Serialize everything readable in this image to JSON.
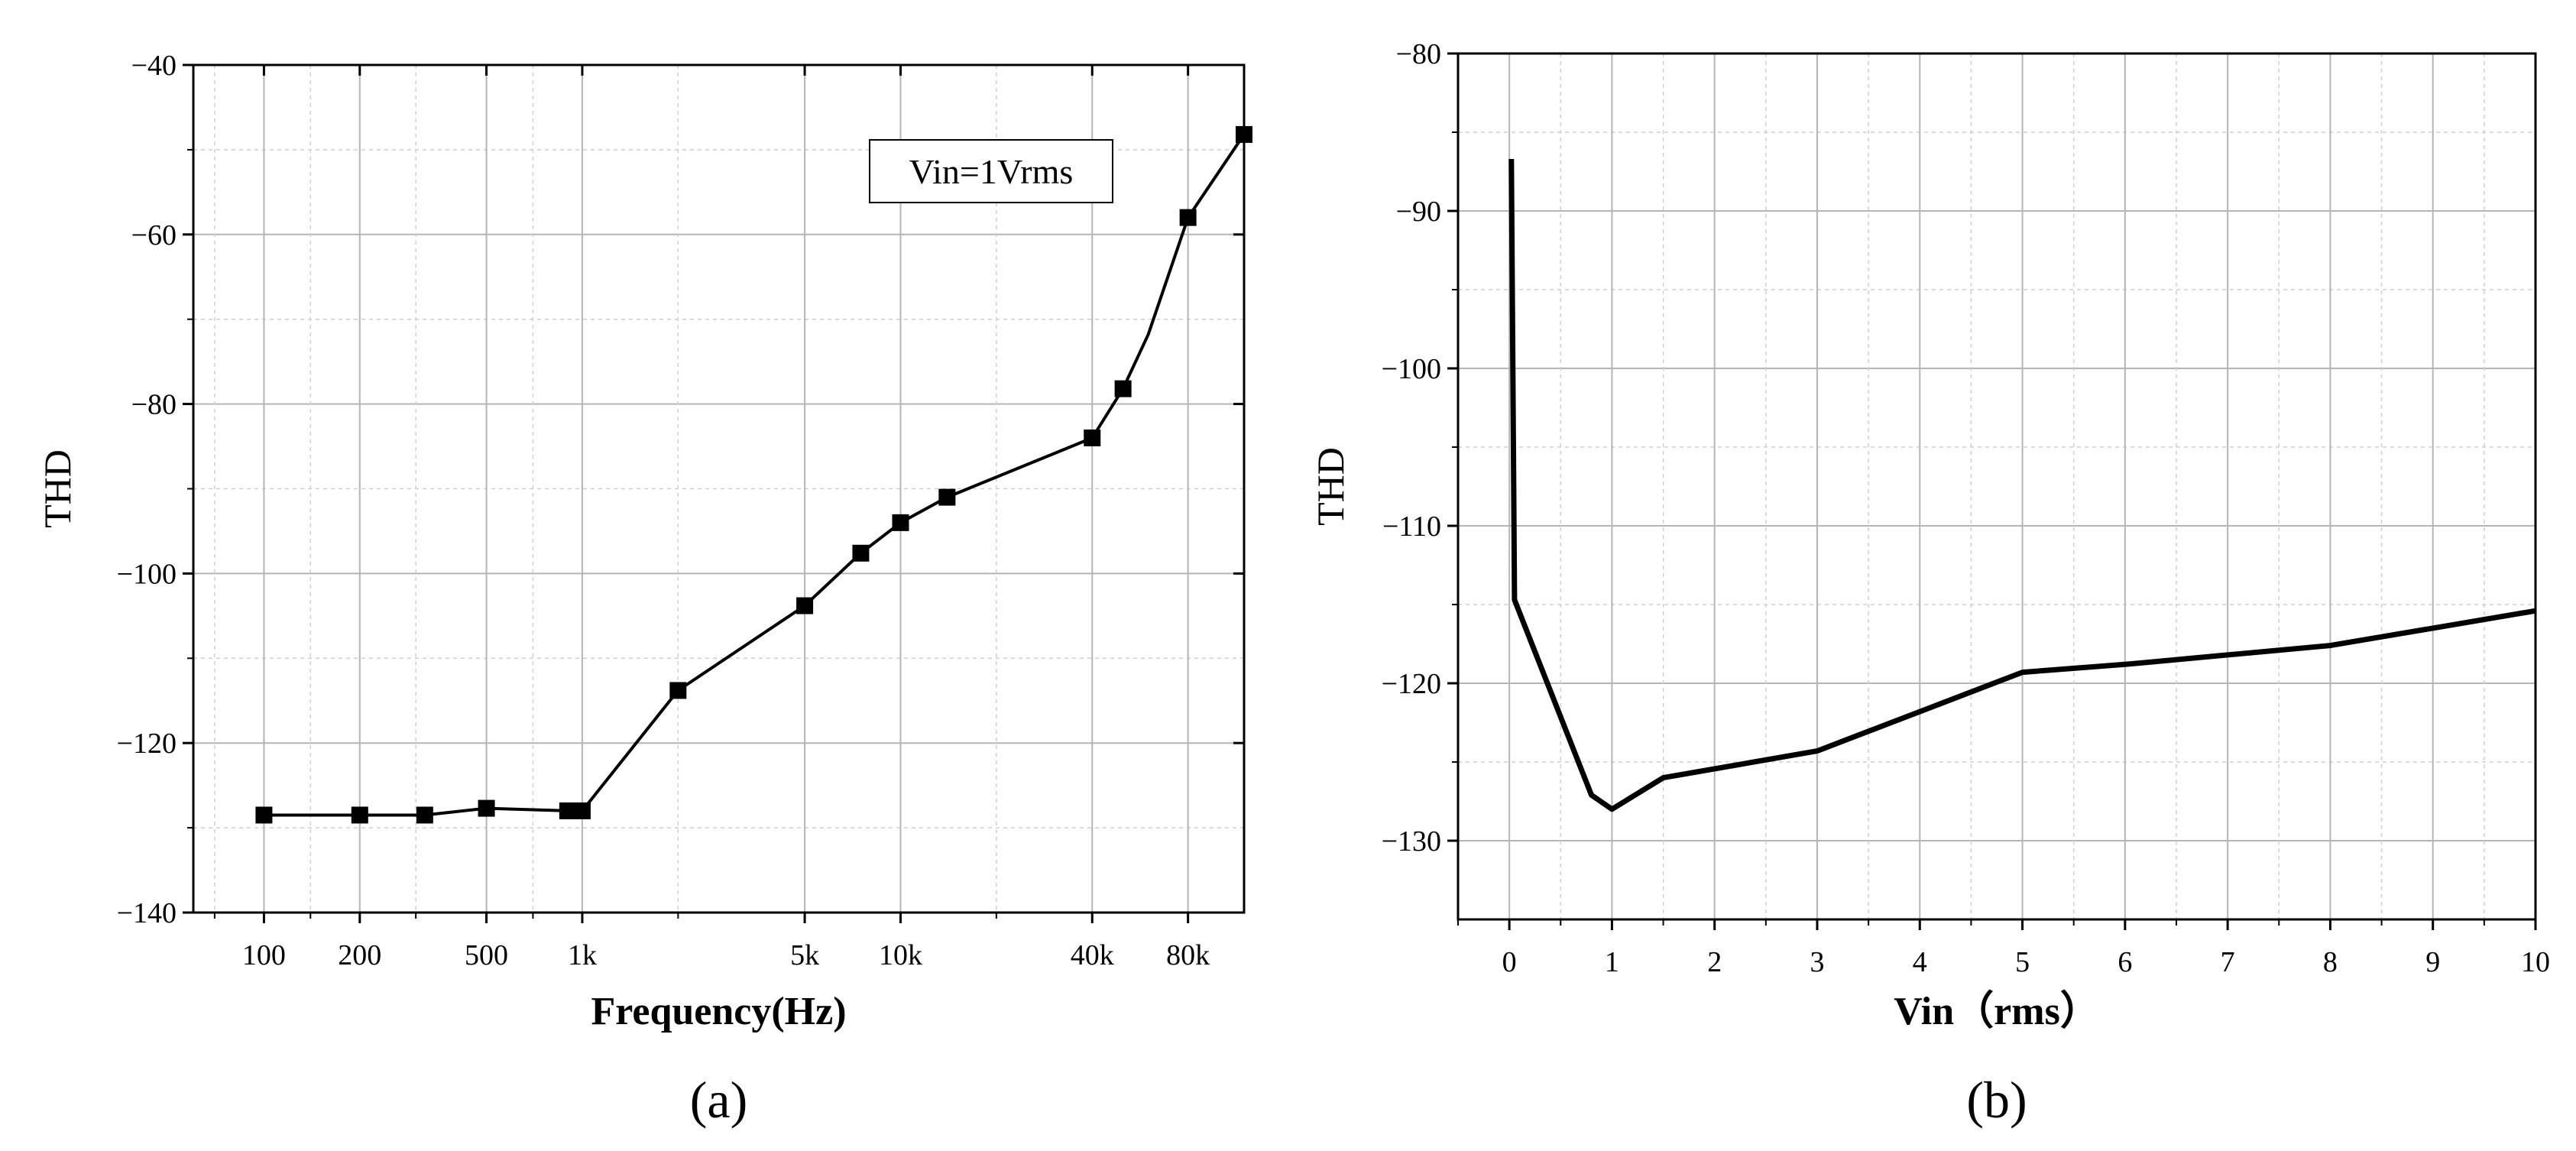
{
  "chart_data": [
    {
      "panel_label": "(a)",
      "type": "line",
      "xscale": "log",
      "xlabel": "Frequency(Hz)",
      "ylabel": "THD",
      "ylim": [
        -140,
        -40
      ],
      "yticks": [
        -140,
        -120,
        -100,
        -80,
        -60,
        -40
      ],
      "yticks_minor": [
        -130,
        -110,
        -90,
        -70,
        -50
      ],
      "xlim": [
        60,
        120000
      ],
      "xticks": [
        {
          "value": 100,
          "label": "100"
        },
        {
          "value": 200,
          "label": "200"
        },
        {
          "value": 500,
          "label": "500"
        },
        {
          "value": 1000,
          "label": "1k"
        },
        {
          "value": 5000,
          "label": "5k"
        },
        {
          "value": 10000,
          "label": "10k"
        },
        {
          "value": 40000,
          "label": "40k"
        },
        {
          "value": 80000,
          "label": "80k"
        }
      ],
      "xgrid_minor": [
        70,
        140,
        300,
        700,
        2000,
        20000,
        120000
      ],
      "annotation": "Vin=1Vrms",
      "grid": true,
      "series": [
        {
          "x": [
            100,
            200,
            320,
            500,
            900,
            1000,
            2000,
            5000,
            7500,
            10000,
            14000,
            40000,
            50000,
            60000,
            80000,
            120000
          ],
          "y": [
            -128.5,
            -128.5,
            -128.5,
            -127.7,
            -128.0,
            -128.0,
            -113.8,
            -103.8,
            -97.6,
            -94.0,
            -91.0,
            -84.0,
            -78.2,
            -71.8,
            -58.0,
            -48.2
          ],
          "markers": [
            true,
            true,
            true,
            true,
            true,
            true,
            true,
            true,
            true,
            true,
            true,
            true,
            true,
            false,
            true,
            true
          ],
          "marker": "square",
          "color": "#000000"
        }
      ]
    },
    {
      "panel_label": "(b)",
      "type": "line",
      "xlabel": "Vin（rms）",
      "ylabel": "THD",
      "xlim": [
        -0.5,
        10
      ],
      "ylim": [
        -135,
        -80
      ],
      "xticks": [
        0,
        1,
        2,
        3,
        4,
        5,
        6,
        7,
        8,
        9,
        10
      ],
      "yticks": [
        -130,
        -120,
        -110,
        -100,
        -90,
        -80
      ],
      "yticks_minor": [
        -125,
        -115,
        -105,
        -95,
        -85
      ],
      "grid": true,
      "series": [
        {
          "x": [
            0.02,
            0.05,
            0.8,
            1.0,
            1.5,
            3.0,
            4.0,
            5.0,
            6.0,
            7.0,
            8.0,
            9.0,
            10.0
          ],
          "y": [
            -86.7,
            -114.7,
            -127.1,
            -128.0,
            -126.0,
            -124.3,
            -121.8,
            -119.3,
            -118.8,
            -118.2,
            -117.6,
            -116.5,
            -115.4
          ],
          "color": "#000000"
        }
      ]
    }
  ]
}
